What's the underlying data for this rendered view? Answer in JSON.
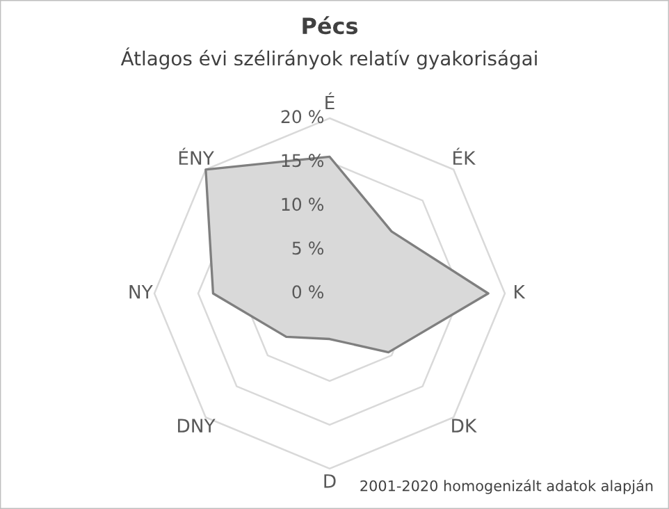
{
  "chart_data": {
    "type": "radar",
    "title": "Pécs",
    "subtitle": "Átlagos évi szélirányok relatív gyakoriságai",
    "categories": [
      "É",
      "ÉK",
      "K",
      "DK",
      "D",
      "DNY",
      "NY",
      "ÉNY"
    ],
    "series": [
      {
        "color": "#d9d9d9",
        "values": [
          15.6,
          10.0,
          18.1,
          9.5,
          5.2,
          7.0,
          13.3,
          20.0
        ]
      }
    ],
    "ylim": [
      0,
      20
    ],
    "yticks": [
      {
        "value": 0,
        "label": "0 %"
      },
      {
        "value": 5,
        "label": "5 %"
      },
      {
        "value": 10,
        "label": "10 %"
      },
      {
        "value": 15,
        "label": "15 %"
      },
      {
        "value": 20,
        "label": "20 %"
      }
    ],
    "grid": true,
    "annotations": [
      "2001-2020 homogenizált adatok alapján"
    ]
  }
}
